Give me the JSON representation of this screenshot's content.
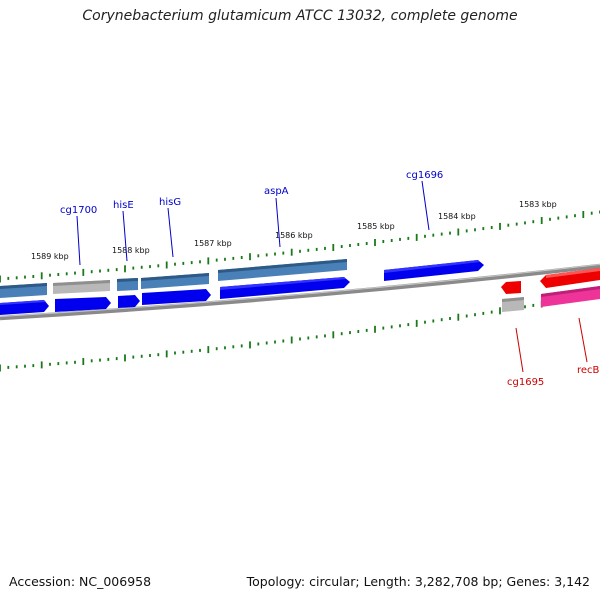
{
  "title": "Corynebacterium glutamicum ATCC 13032, complete genome",
  "footer": {
    "accession": "Accession: NC_006958",
    "summary": "Topology: circular; Length: 3,282,708 bp; Genes: 3,142"
  },
  "colors": {
    "backbone": "#777777",
    "tick": "#1a7a1a",
    "forward_label": "#0000cc",
    "reverse_label": "#cc0000",
    "gene_blue": "#0000ee",
    "gene_steel": "#4a80b8",
    "gene_grey": "#b8b8b8",
    "gene_red": "#ee0000",
    "gene_pink": "#ee3399"
  },
  "scale_labels": [
    "1589 kbp",
    "1588 kbp",
    "1587 kbp",
    "1586 kbp",
    "1585 kbp",
    "1584 kbp",
    "1583 kbp"
  ],
  "gene_labels": {
    "forward": [
      "cg1700",
      "hisE",
      "hisG",
      "aspA",
      "cg1696"
    ],
    "reverse": [
      "cg1695",
      "recB"
    ]
  }
}
